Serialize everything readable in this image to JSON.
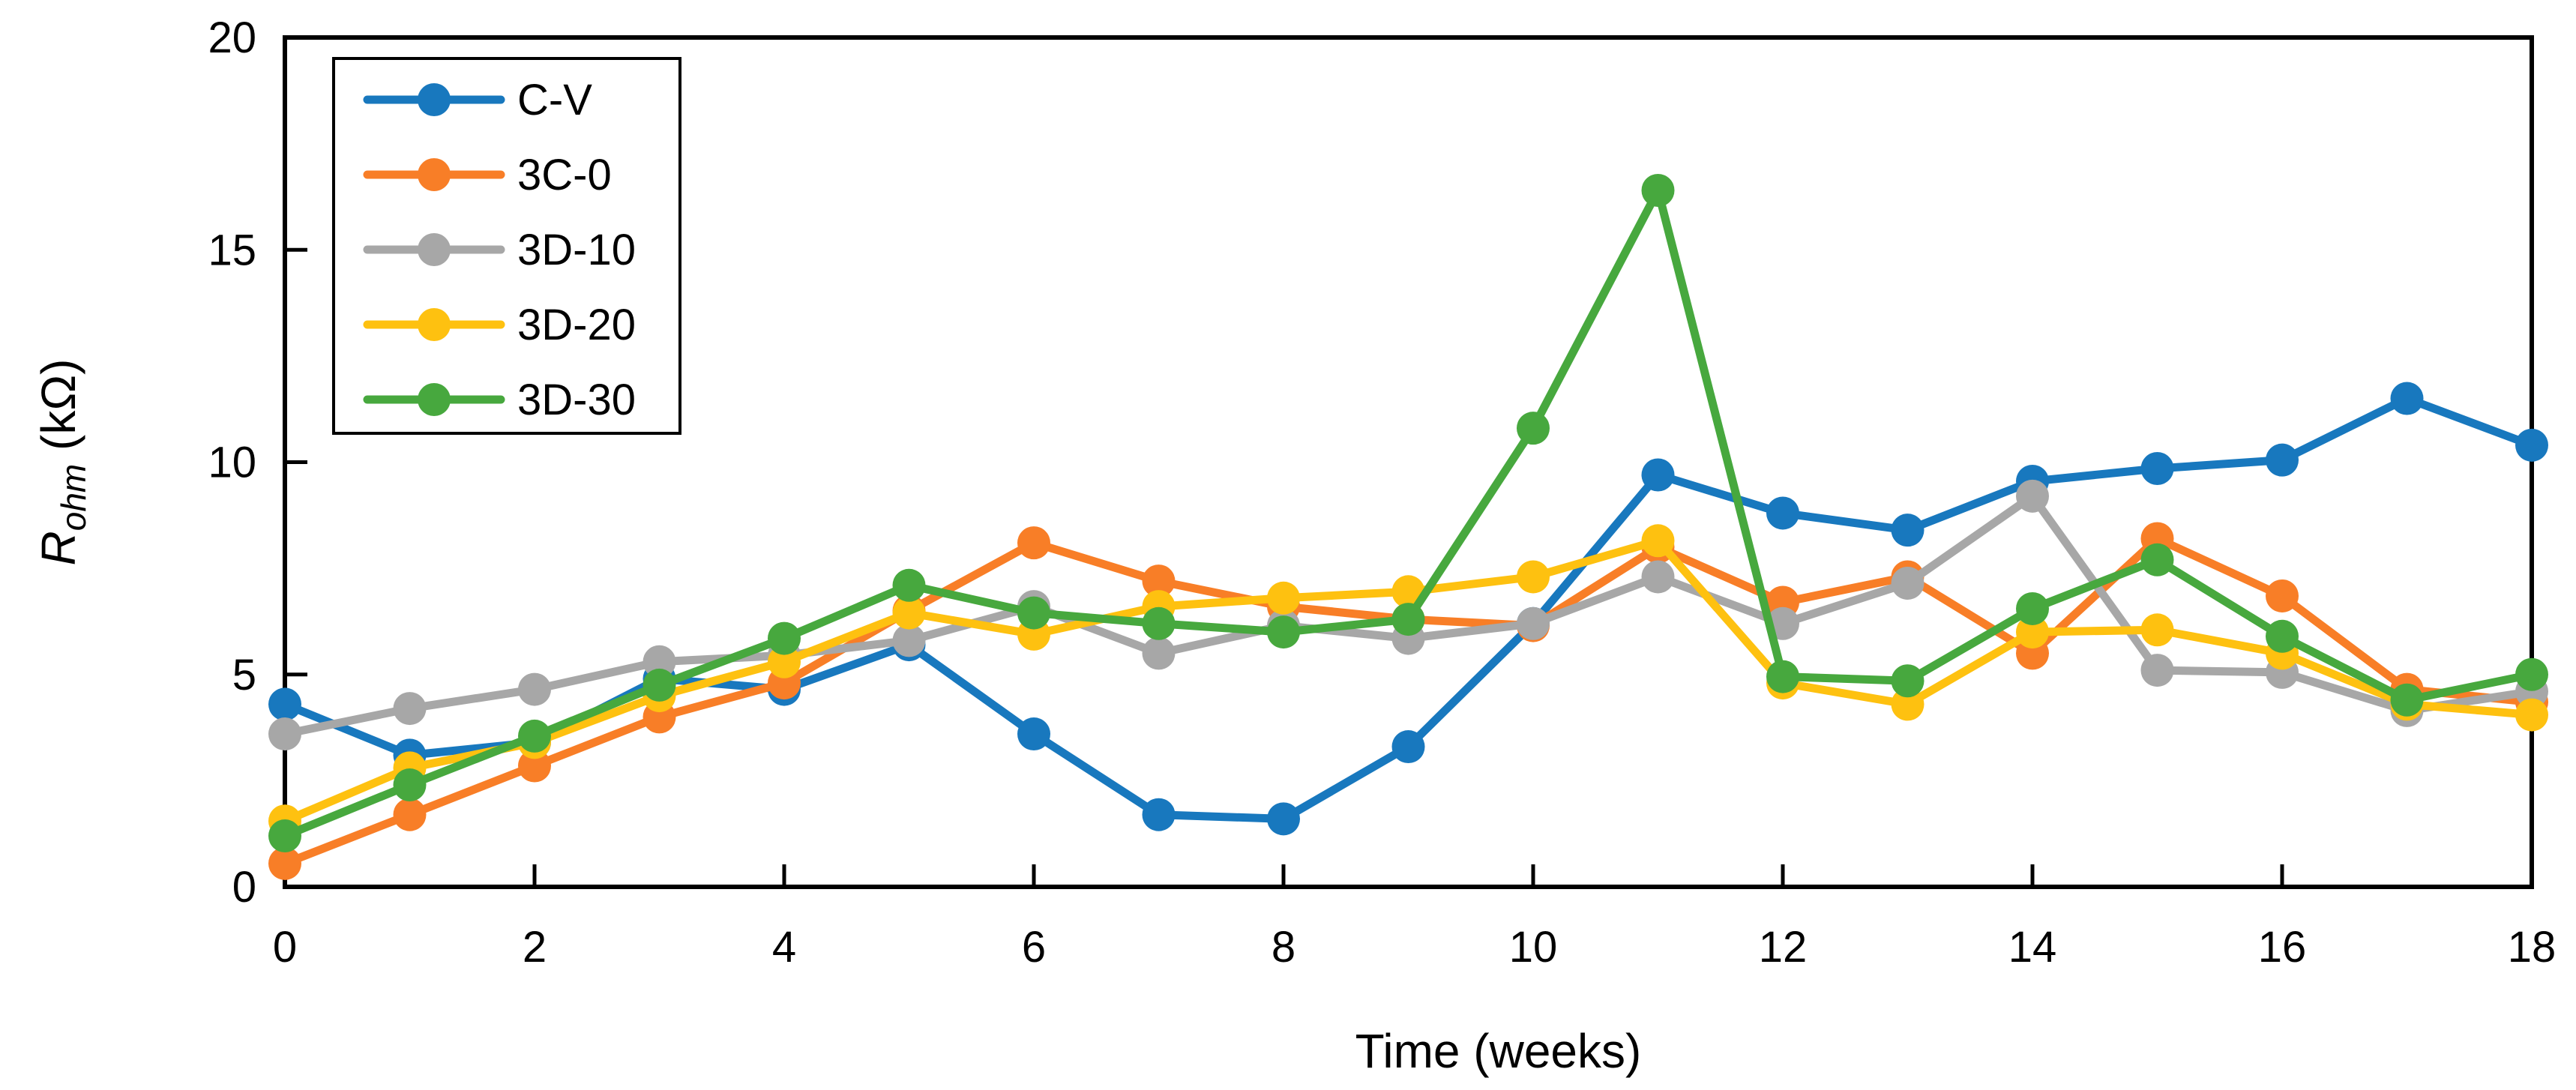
{
  "chart_data": {
    "type": "line",
    "xlabel": "Time (weeks)",
    "ylabel": {
      "main": "R",
      "subscript": "ohm",
      "rest": " (kΩ)"
    },
    "x": [
      0,
      1,
      2,
      3,
      4,
      5,
      6,
      7,
      8,
      9,
      10,
      11,
      12,
      13,
      14,
      15,
      16,
      17,
      18
    ],
    "xticks": [
      0,
      2,
      4,
      6,
      8,
      10,
      12,
      14,
      16,
      18
    ],
    "yticks": [
      0,
      5,
      10,
      15,
      20
    ],
    "xlim": [
      0,
      18
    ],
    "ylim": [
      0,
      20
    ],
    "grid": "off",
    "legend_position": "top-left-inside",
    "series": [
      {
        "name": "C-V",
        "color": "#1878BE",
        "values": [
          4.3,
          3.1,
          3.4,
          4.9,
          4.65,
          5.7,
          3.6,
          1.7,
          1.6,
          3.3,
          6.2,
          9.7,
          8.8,
          8.4,
          9.55,
          9.85,
          10.05,
          11.5,
          10.4
        ]
      },
      {
        "name": "3C-0",
        "color": "#F87E27",
        "values": [
          0.55,
          1.7,
          2.85,
          4.0,
          4.8,
          6.5,
          8.1,
          7.2,
          6.6,
          6.3,
          6.15,
          8.0,
          6.7,
          7.3,
          5.5,
          8.2,
          6.85,
          4.65,
          4.35
        ]
      },
      {
        "name": "3D-10",
        "color": "#A7A7A7",
        "values": [
          3.6,
          4.2,
          4.65,
          5.3,
          5.45,
          5.8,
          6.6,
          5.5,
          6.15,
          5.85,
          6.2,
          7.3,
          6.2,
          7.15,
          9.2,
          5.1,
          5.05,
          4.15,
          4.6
        ]
      },
      {
        "name": "3D-20",
        "color": "#FEC110",
        "values": [
          1.55,
          2.8,
          3.4,
          4.5,
          5.3,
          6.45,
          5.95,
          6.6,
          6.8,
          6.95,
          7.3,
          8.15,
          4.8,
          4.3,
          6.0,
          6.05,
          5.5,
          4.3,
          4.05
        ]
      },
      {
        "name": "3D-30",
        "color": "#47A83E",
        "values": [
          1.2,
          2.4,
          3.55,
          4.75,
          5.85,
          7.1,
          6.45,
          6.2,
          6.0,
          6.3,
          10.8,
          16.4,
          4.95,
          4.85,
          6.55,
          7.7,
          5.9,
          4.4,
          5.0
        ]
      }
    ],
    "axis_color": "#000000",
    "text_color": "#000000"
  }
}
